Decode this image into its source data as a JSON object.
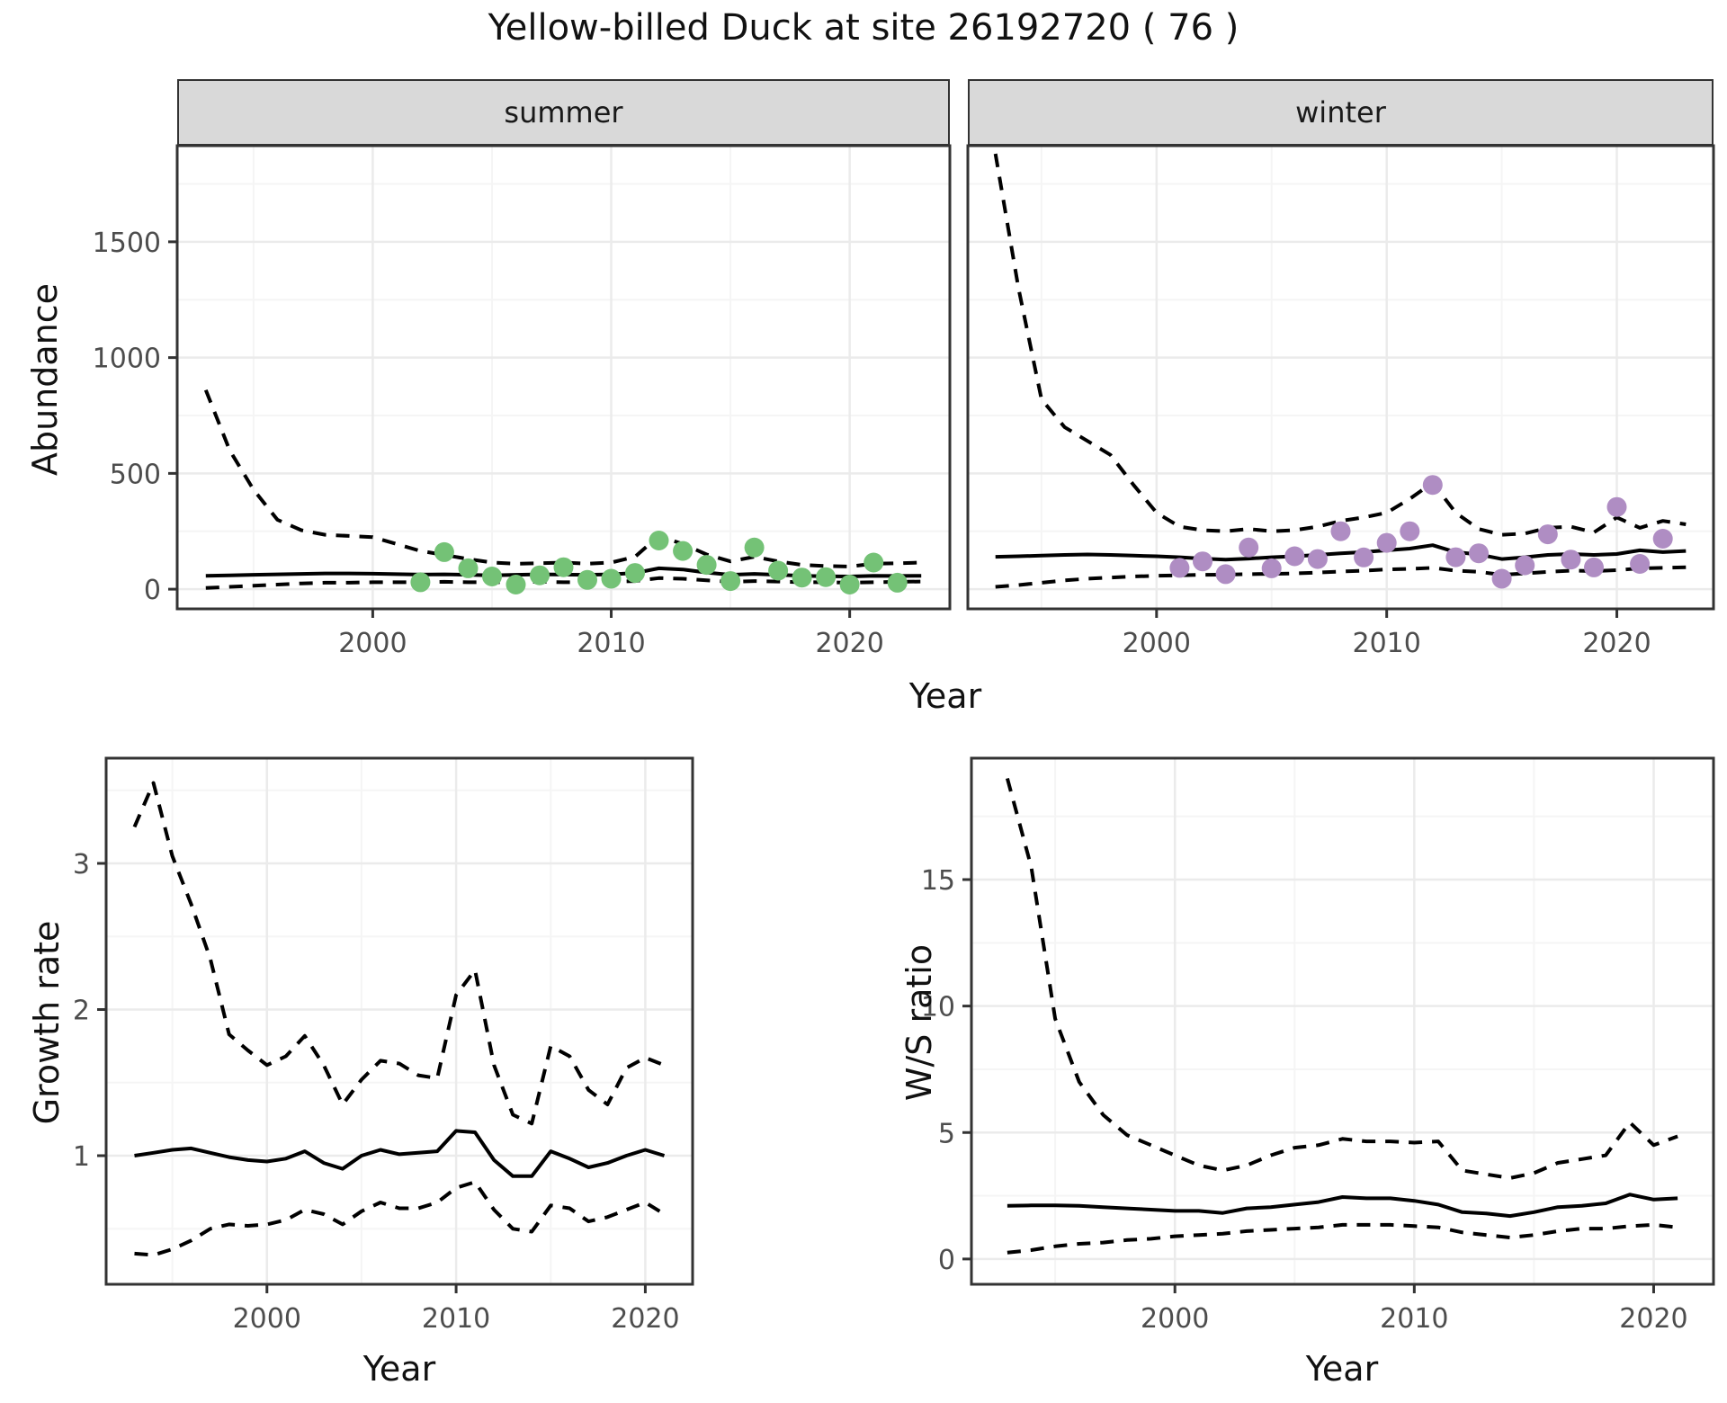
{
  "title": "Yellow-billed Duck at site 26192720 ( 76 )",
  "facets": {
    "summer": "summer",
    "winter": "winter"
  },
  "axis_labels": {
    "top_y": "Abundance",
    "top_x": "Year",
    "bottom_left_y": "Growth rate",
    "bottom_left_x": "Year",
    "bottom_right_y": "W/S ratio",
    "bottom_right_x": "Year"
  },
  "colors": {
    "summer_points": "#74c276",
    "winter_points": "#af8dc3",
    "line": "#000000",
    "strip_fill": "#d9d9d9",
    "panel_border": "#333333",
    "grid_major": "#ebebeb",
    "grid_minor": "#f5f5f5",
    "tick_text": "#4d4d4d"
  },
  "chart_data": [
    {
      "id": "summer",
      "type": "line",
      "title": "summer",
      "xlabel": "Year",
      "ylabel": "Abundance",
      "legend": "none",
      "grid": true,
      "xlim": [
        1991.8,
        2024.2
      ],
      "ylim": [
        -85,
        1915
      ],
      "xticks": {
        "values": [
          2000,
          2010,
          2020
        ],
        "labels": [
          "2000",
          "2010",
          "2020"
        ],
        "minor": [
          1995,
          2005,
          2015
        ]
      },
      "yticks": {
        "values": [
          0,
          500,
          1000,
          1500
        ],
        "labels": [
          "0",
          "500",
          "1000",
          "1500"
        ],
        "minor": [
          250,
          750,
          1250,
          1750
        ]
      },
      "show_y_tick_labels": true,
      "x": [
        1993,
        1994,
        1995,
        1996,
        1997,
        1998,
        1999,
        2000,
        2001,
        2002,
        2003,
        2004,
        2005,
        2006,
        2007,
        2008,
        2009,
        2010,
        2011,
        2012,
        2013,
        2014,
        2015,
        2016,
        2017,
        2018,
        2019,
        2020,
        2021,
        2022,
        2023
      ],
      "series": [
        {
          "name": "upper_95ci",
          "style": "dashed",
          "values": [
            860,
            600,
            430,
            300,
            255,
            235,
            230,
            225,
            195,
            165,
            148,
            130,
            115,
            110,
            112,
            115,
            110,
            115,
            140,
            230,
            195,
            150,
            120,
            140,
            120,
            105,
            100,
            98,
            110,
            112,
            115
          ]
        },
        {
          "name": "median",
          "style": "solid",
          "values": [
            58,
            60,
            62,
            64,
            66,
            68,
            68,
            67,
            65,
            63,
            64,
            62,
            60,
            62,
            64,
            63,
            62,
            64,
            70,
            90,
            85,
            72,
            62,
            66,
            62,
            58,
            56,
            55,
            58,
            57,
            58
          ]
        },
        {
          "name": "lower_95ci",
          "style": "dashed",
          "values": [
            5,
            10,
            15,
            20,
            25,
            28,
            28,
            30,
            30,
            30,
            32,
            30,
            30,
            30,
            32,
            30,
            30,
            32,
            35,
            48,
            45,
            38,
            32,
            35,
            33,
            30,
            30,
            28,
            30,
            32,
            33
          ]
        }
      ],
      "points": {
        "name": "observed_summer_counts",
        "color": "#74c276",
        "x": [
          2002,
          2003,
          2004,
          2005,
          2006,
          2007,
          2008,
          2009,
          2010,
          2011,
          2012,
          2013,
          2014,
          2015,
          2016,
          2017,
          2018,
          2019,
          2020,
          2021,
          2022
        ],
        "y": [
          30,
          160,
          90,
          55,
          20,
          60,
          95,
          40,
          45,
          70,
          210,
          165,
          105,
          35,
          180,
          80,
          50,
          52,
          20,
          115,
          28
        ]
      }
    },
    {
      "id": "winter",
      "type": "line",
      "title": "winter",
      "xlabel": "Year",
      "ylabel": "Abundance",
      "legend": "none",
      "grid": true,
      "xlim": [
        1991.8,
        2024.2
      ],
      "ylim": [
        -85,
        1915
      ],
      "xticks": {
        "values": [
          2000,
          2010,
          2020
        ],
        "labels": [
          "2000",
          "2010",
          "2020"
        ],
        "minor": [
          1995,
          2005,
          2015
        ]
      },
      "yticks": {
        "values": [
          0,
          500,
          1000,
          1500
        ],
        "labels": [
          "0",
          "500",
          "1000",
          "1500"
        ],
        "minor": [
          250,
          750,
          1250,
          1750
        ]
      },
      "show_y_tick_labels": false,
      "x": [
        1993,
        1994,
        1995,
        1996,
        1997,
        1998,
        1999,
        2000,
        2001,
        2002,
        2003,
        2004,
        2005,
        2006,
        2007,
        2008,
        2009,
        2010,
        2011,
        2012,
        2013,
        2014,
        2015,
        2016,
        2017,
        2018,
        2019,
        2020,
        2021,
        2022,
        2023
      ],
      "series": [
        {
          "name": "upper_95ci",
          "style": "dashed",
          "values": [
            1880,
            1300,
            820,
            700,
            640,
            580,
            450,
            330,
            270,
            255,
            250,
            260,
            250,
            255,
            270,
            295,
            310,
            330,
            390,
            460,
            330,
            260,
            235,
            240,
            265,
            270,
            245,
            310,
            265,
            295,
            280
          ]
        },
        {
          "name": "median",
          "style": "solid",
          "values": [
            140,
            142,
            145,
            148,
            150,
            148,
            145,
            142,
            138,
            132,
            128,
            132,
            138,
            142,
            148,
            155,
            160,
            168,
            175,
            190,
            160,
            150,
            130,
            138,
            148,
            152,
            148,
            152,
            168,
            160,
            165
          ]
        },
        {
          "name": "lower_95ci",
          "style": "dashed",
          "values": [
            10,
            18,
            28,
            38,
            45,
            50,
            55,
            58,
            60,
            62,
            63,
            65,
            66,
            68,
            72,
            76,
            80,
            85,
            88,
            92,
            80,
            75,
            62,
            68,
            75,
            80,
            78,
            82,
            90,
            92,
            95
          ]
        }
      ],
      "points": {
        "name": "observed_winter_counts",
        "color": "#af8dc3",
        "x": [
          2001,
          2002,
          2003,
          2004,
          2005,
          2006,
          2007,
          2008,
          2009,
          2010,
          2011,
          2012,
          2013,
          2014,
          2015,
          2016,
          2017,
          2018,
          2019,
          2020,
          2021,
          2022
        ],
        "y": [
          92,
          120,
          65,
          180,
          90,
          142,
          130,
          250,
          137,
          200,
          250,
          450,
          138,
          155,
          45,
          103,
          237,
          128,
          94,
          355,
          109,
          218
        ]
      }
    },
    {
      "id": "growth",
      "type": "line",
      "title": "Growth rate",
      "xlabel": "Year",
      "ylabel": "Growth rate",
      "legend": "none",
      "grid": true,
      "xlim": [
        1991.5,
        2022.5
      ],
      "ylim": [
        0.12,
        3.72
      ],
      "xticks": {
        "values": [
          2000,
          2010,
          2020
        ],
        "labels": [
          "2000",
          "2010",
          "2020"
        ],
        "minor": [
          1995,
          2005,
          2015
        ]
      },
      "yticks": {
        "values": [
          1,
          2,
          3
        ],
        "labels": [
          "1",
          "2",
          "3"
        ],
        "minor": [
          0.5,
          1.5,
          2.5,
          3.5
        ]
      },
      "show_y_tick_labels": true,
      "x": [
        1993,
        1994,
        1995,
        1996,
        1997,
        1998,
        1999,
        2000,
        2001,
        2002,
        2003,
        2004,
        2005,
        2006,
        2007,
        2008,
        2009,
        2010,
        2011,
        2012,
        2013,
        2014,
        2015,
        2016,
        2017,
        2018,
        2019,
        2020,
        2021
      ],
      "series": [
        {
          "name": "upper_95ci",
          "style": "dashed",
          "values": [
            3.25,
            3.55,
            3.05,
            2.72,
            2.35,
            1.83,
            1.72,
            1.62,
            1.68,
            1.82,
            1.62,
            1.35,
            1.52,
            1.65,
            1.63,
            1.55,
            1.53,
            2.1,
            2.27,
            1.62,
            1.28,
            1.22,
            1.75,
            1.68,
            1.45,
            1.35,
            1.6,
            1.67,
            1.62
          ]
        },
        {
          "name": "median",
          "style": "solid",
          "values": [
            1.0,
            1.02,
            1.04,
            1.05,
            1.02,
            0.99,
            0.97,
            0.96,
            0.98,
            1.03,
            0.95,
            0.91,
            1.0,
            1.04,
            1.01,
            1.02,
            1.03,
            1.17,
            1.16,
            0.97,
            0.86,
            0.86,
            1.03,
            0.98,
            0.92,
            0.95,
            1.0,
            1.04,
            1.0
          ]
        },
        {
          "name": "lower_95ci",
          "style": "dashed",
          "values": [
            0.33,
            0.32,
            0.36,
            0.42,
            0.5,
            0.53,
            0.52,
            0.53,
            0.56,
            0.63,
            0.6,
            0.53,
            0.62,
            0.68,
            0.64,
            0.64,
            0.68,
            0.78,
            0.82,
            0.63,
            0.5,
            0.48,
            0.66,
            0.64,
            0.55,
            0.58,
            0.63,
            0.68,
            0.6
          ]
        }
      ],
      "points": null
    },
    {
      "id": "ws",
      "type": "line",
      "title": "W/S ratio",
      "xlabel": "Year",
      "ylabel": "W/S ratio",
      "legend": "none",
      "grid": true,
      "xlim": [
        1991.5,
        2022.5
      ],
      "ylim": [
        -1.0,
        19.8
      ],
      "xticks": {
        "values": [
          2000,
          2010,
          2020
        ],
        "labels": [
          "2000",
          "2010",
          "2020"
        ],
        "minor": [
          1995,
          2005,
          2015
        ]
      },
      "yticks": {
        "values": [
          0,
          5,
          10,
          15
        ],
        "labels": [
          "0",
          "5",
          "10",
          "15"
        ],
        "minor": [
          2.5,
          7.5,
          12.5,
          17.5
        ]
      },
      "show_y_tick_labels": true,
      "x": [
        1993,
        1994,
        1995,
        1996,
        1997,
        1998,
        1999,
        2000,
        2001,
        2002,
        2003,
        2004,
        2005,
        2006,
        2007,
        2008,
        2009,
        2010,
        2011,
        2012,
        2013,
        2014,
        2015,
        2016,
        2017,
        2018,
        2019,
        2020,
        2021
      ],
      "series": [
        {
          "name": "upper_95ci",
          "style": "dashed",
          "values": [
            19.0,
            15.5,
            9.5,
            7.0,
            5.7,
            4.9,
            4.5,
            4.1,
            3.7,
            3.5,
            3.7,
            4.1,
            4.4,
            4.5,
            4.75,
            4.65,
            4.65,
            4.6,
            4.65,
            3.5,
            3.35,
            3.2,
            3.4,
            3.8,
            3.95,
            4.1,
            5.4,
            4.5,
            4.85
          ]
        },
        {
          "name": "median",
          "style": "solid",
          "values": [
            2.1,
            2.12,
            2.12,
            2.1,
            2.05,
            2.0,
            1.95,
            1.9,
            1.9,
            1.82,
            2.0,
            2.05,
            2.15,
            2.25,
            2.45,
            2.4,
            2.4,
            2.3,
            2.15,
            1.85,
            1.8,
            1.7,
            1.85,
            2.05,
            2.1,
            2.2,
            2.55,
            2.35,
            2.4
          ]
        },
        {
          "name": "lower_95ci",
          "style": "dashed",
          "values": [
            0.25,
            0.35,
            0.5,
            0.6,
            0.65,
            0.75,
            0.8,
            0.9,
            0.95,
            1.0,
            1.1,
            1.15,
            1.2,
            1.25,
            1.35,
            1.35,
            1.35,
            1.3,
            1.25,
            1.05,
            0.95,
            0.85,
            0.95,
            1.1,
            1.2,
            1.2,
            1.3,
            1.35,
            1.25
          ]
        }
      ],
      "points": null
    }
  ]
}
